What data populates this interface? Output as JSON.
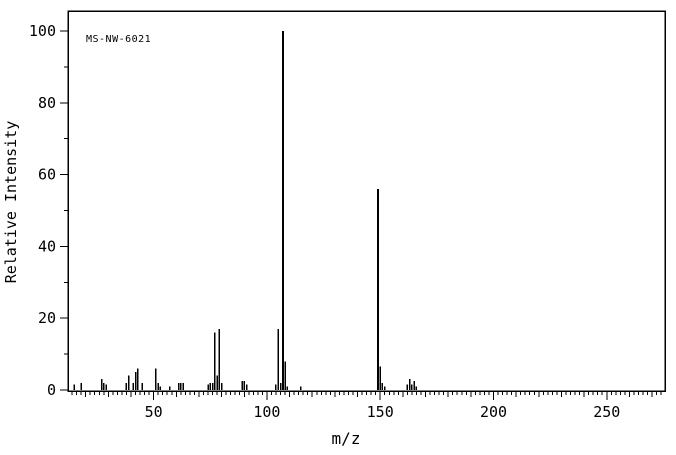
{
  "chart_data": {
    "type": "bar",
    "subtype": "mass-spectrum-stick-plot",
    "annotation": "MS-NW-6021",
    "xlabel": "m/z",
    "ylabel": "Relative Intensity",
    "xlim": [
      12.2,
      275.7
    ],
    "ylim": [
      0,
      105.6
    ],
    "x_major_ticks": [
      50,
      100,
      150,
      200,
      250
    ],
    "x_mid_tick_step": 10,
    "x_minor_tick_step": 2,
    "y_major_ticks": [
      0,
      20,
      40,
      60,
      80,
      100
    ],
    "y_minor_tick_step": 10,
    "grid": false,
    "legend": "none",
    "line_color": "#000000",
    "background_color": "#ffffff",
    "peaks": [
      {
        "mz": 15,
        "intensity": 1.5
      },
      {
        "mz": 18,
        "intensity": 2
      },
      {
        "mz": 27,
        "intensity": 3
      },
      {
        "mz": 28,
        "intensity": 2
      },
      {
        "mz": 29,
        "intensity": 1.5
      },
      {
        "mz": 38,
        "intensity": 2
      },
      {
        "mz": 39,
        "intensity": 4
      },
      {
        "mz": 41,
        "intensity": 2
      },
      {
        "mz": 42,
        "intensity": 5
      },
      {
        "mz": 43,
        "intensity": 6
      },
      {
        "mz": 45,
        "intensity": 2
      },
      {
        "mz": 51,
        "intensity": 6
      },
      {
        "mz": 52,
        "intensity": 2
      },
      {
        "mz": 53,
        "intensity": 1
      },
      {
        "mz": 57,
        "intensity": 1
      },
      {
        "mz": 61,
        "intensity": 2
      },
      {
        "mz": 62,
        "intensity": 2
      },
      {
        "mz": 63,
        "intensity": 2
      },
      {
        "mz": 74,
        "intensity": 1.5
      },
      {
        "mz": 75,
        "intensity": 2
      },
      {
        "mz": 76,
        "intensity": 2
      },
      {
        "mz": 77,
        "intensity": 16
      },
      {
        "mz": 78,
        "intensity": 4
      },
      {
        "mz": 79,
        "intensity": 17
      },
      {
        "mz": 80,
        "intensity": 2
      },
      {
        "mz": 89,
        "intensity": 2.5
      },
      {
        "mz": 90,
        "intensity": 2.5
      },
      {
        "mz": 91,
        "intensity": 1.5
      },
      {
        "mz": 104,
        "intensity": 1.5
      },
      {
        "mz": 105,
        "intensity": 17
      },
      {
        "mz": 106,
        "intensity": 2
      },
      {
        "mz": 107,
        "intensity": 100
      },
      {
        "mz": 108,
        "intensity": 8
      },
      {
        "mz": 109,
        "intensity": 1
      },
      {
        "mz": 115,
        "intensity": 1
      },
      {
        "mz": 149,
        "intensity": 56
      },
      {
        "mz": 150,
        "intensity": 6.5
      },
      {
        "mz": 151,
        "intensity": 2
      },
      {
        "mz": 152,
        "intensity": 1
      },
      {
        "mz": 162,
        "intensity": 1.5
      },
      {
        "mz": 163,
        "intensity": 3
      },
      {
        "mz": 164,
        "intensity": 1.5
      },
      {
        "mz": 165,
        "intensity": 2.5
      },
      {
        "mz": 166,
        "intensity": 1
      }
    ]
  }
}
